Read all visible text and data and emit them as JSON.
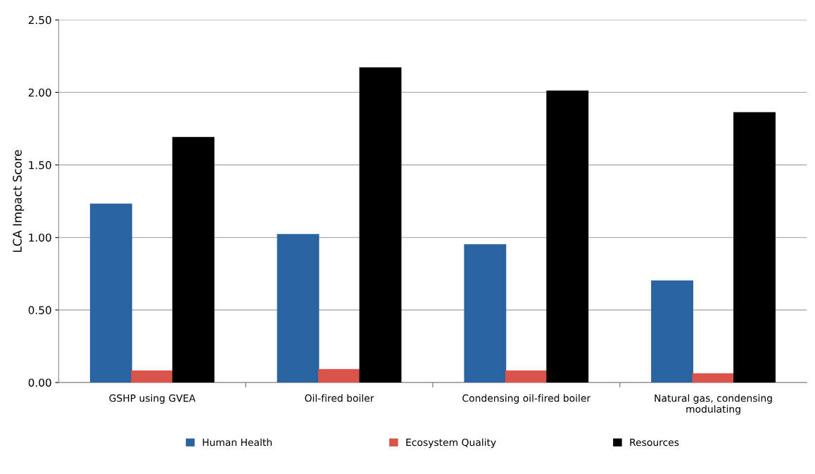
{
  "chart_data": {
    "type": "bar",
    "ylabel": "LCA Impact Score",
    "categories": [
      "GSHP using GVEA",
      "Oil-fired boiler",
      "Condensing oil-fired boiler",
      "Natural gas, condensing\nmodulating"
    ],
    "series": [
      {
        "name": "Human Health",
        "color": "#2a64a0",
        "values": [
          1.23,
          1.02,
          0.95,
          0.7
        ]
      },
      {
        "name": "Ecosystem Quality",
        "color": "#d9534a",
        "values": [
          0.08,
          0.09,
          0.08,
          0.06
        ]
      },
      {
        "name": "Resources",
        "color": "#000000",
        "values": [
          1.69,
          2.17,
          2.01,
          1.86
        ]
      }
    ],
    "ylim": [
      0,
      2.5
    ],
    "yticks": [
      {
        "value": 0,
        "label": "0.00"
      },
      {
        "value": 0.5,
        "label": "0.50"
      },
      {
        "value": 1,
        "label": "1.00"
      },
      {
        "value": 1.5,
        "label": "1.50"
      },
      {
        "value": 2,
        "label": "2.00"
      },
      {
        "value": 2.5,
        "label": "2.50"
      }
    ],
    "grid": "y",
    "legend": "bottom"
  }
}
